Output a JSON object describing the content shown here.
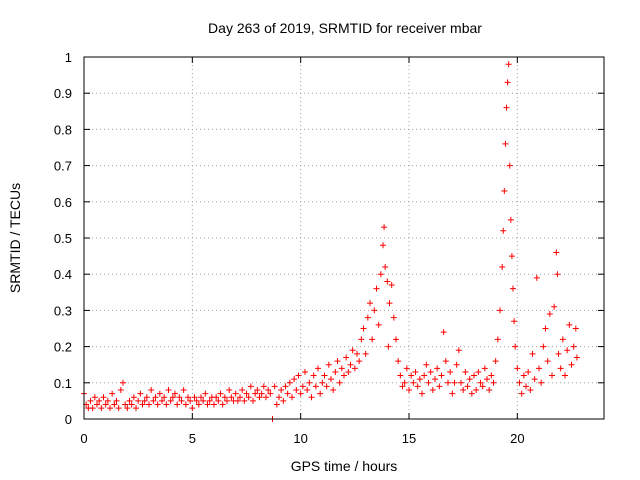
{
  "chart_data": {
    "type": "scatter",
    "title": "Day 263 of 2019, SRMTID for receiver mbar",
    "xlabel": "GPS time / hours",
    "ylabel": "SRMTID / TECUs",
    "xlim": [
      0,
      24
    ],
    "ylim": [
      0,
      1
    ],
    "x_ticks": [
      0,
      5,
      10,
      15,
      20
    ],
    "x_tick_labels": [
      "0",
      "5",
      "10",
      "15",
      "20"
    ],
    "y_ticks": [
      0,
      0.1,
      0.2,
      0.3,
      0.4,
      0.5,
      0.6,
      0.7,
      0.8,
      0.9,
      1
    ],
    "y_tick_labels": [
      "0",
      "0.1",
      "0.2",
      "0.3",
      "0.4",
      "0.5",
      "0.6",
      "0.7",
      "0.8",
      "0.9",
      "1"
    ],
    "grid": true,
    "marker": "+",
    "color": "#ff0000",
    "series": [
      {
        "name": "SRMTID",
        "points": [
          [
            0.0,
            0.07
          ],
          [
            0.1,
            0.04
          ],
          [
            0.2,
            0.03
          ],
          [
            0.3,
            0.05
          ],
          [
            0.4,
            0.03
          ],
          [
            0.5,
            0.06
          ],
          [
            0.6,
            0.04
          ],
          [
            0.7,
            0.05
          ],
          [
            0.8,
            0.03
          ],
          [
            0.9,
            0.06
          ],
          [
            1.0,
            0.04
          ],
          [
            1.1,
            0.05
          ],
          [
            1.2,
            0.03
          ],
          [
            1.3,
            0.07
          ],
          [
            1.4,
            0.04
          ],
          [
            1.5,
            0.05
          ],
          [
            1.6,
            0.03
          ],
          [
            1.7,
            0.08
          ],
          [
            1.8,
            0.1
          ],
          [
            1.9,
            0.04
          ],
          [
            2.0,
            0.03
          ],
          [
            2.1,
            0.05
          ],
          [
            2.2,
            0.04
          ],
          [
            2.3,
            0.06
          ],
          [
            2.4,
            0.03
          ],
          [
            2.5,
            0.05
          ],
          [
            2.6,
            0.07
          ],
          [
            2.7,
            0.04
          ],
          [
            2.8,
            0.05
          ],
          [
            2.9,
            0.06
          ],
          [
            3.0,
            0.04
          ],
          [
            3.1,
            0.08
          ],
          [
            3.2,
            0.05
          ],
          [
            3.3,
            0.06
          ],
          [
            3.4,
            0.04
          ],
          [
            3.5,
            0.07
          ],
          [
            3.6,
            0.05
          ],
          [
            3.7,
            0.06
          ],
          [
            3.8,
            0.04
          ],
          [
            3.9,
            0.08
          ],
          [
            4.0,
            0.05
          ],
          [
            4.1,
            0.06
          ],
          [
            4.2,
            0.07
          ],
          [
            4.3,
            0.04
          ],
          [
            4.4,
            0.06
          ],
          [
            4.5,
            0.05
          ],
          [
            4.6,
            0.08
          ],
          [
            4.7,
            0.04
          ],
          [
            4.8,
            0.06
          ],
          [
            4.9,
            0.05
          ],
          [
            5.0,
            0.03
          ],
          [
            5.1,
            0.06
          ],
          [
            5.2,
            0.05
          ],
          [
            5.3,
            0.04
          ],
          [
            5.4,
            0.06
          ],
          [
            5.5,
            0.05
          ],
          [
            5.6,
            0.07
          ],
          [
            5.7,
            0.04
          ],
          [
            5.8,
            0.05
          ],
          [
            5.9,
            0.06
          ],
          [
            6.0,
            0.04
          ],
          [
            6.1,
            0.06
          ],
          [
            6.2,
            0.05
          ],
          [
            6.3,
            0.07
          ],
          [
            6.4,
            0.04
          ],
          [
            6.5,
            0.06
          ],
          [
            6.6,
            0.05
          ],
          [
            6.7,
            0.08
          ],
          [
            6.8,
            0.06
          ],
          [
            6.9,
            0.05
          ],
          [
            7.0,
            0.07
          ],
          [
            7.1,
            0.05
          ],
          [
            7.2,
            0.06
          ],
          [
            7.3,
            0.08
          ],
          [
            7.4,
            0.05
          ],
          [
            7.5,
            0.07
          ],
          [
            7.6,
            0.06
          ],
          [
            7.7,
            0.09
          ],
          [
            7.8,
            0.05
          ],
          [
            7.9,
            0.07
          ],
          [
            8.0,
            0.08
          ],
          [
            8.1,
            0.06
          ],
          [
            8.2,
            0.07
          ],
          [
            8.3,
            0.09
          ],
          [
            8.4,
            0.06
          ],
          [
            8.5,
            0.08
          ],
          [
            8.6,
            0.07
          ],
          [
            8.7,
            0.0
          ],
          [
            8.8,
            0.09
          ],
          [
            8.9,
            0.04
          ],
          [
            9.0,
            0.06
          ],
          [
            9.1,
            0.08
          ],
          [
            9.2,
            0.05
          ],
          [
            9.3,
            0.09
          ],
          [
            9.4,
            0.07
          ],
          [
            9.5,
            0.1
          ],
          [
            9.6,
            0.06
          ],
          [
            9.7,
            0.11
          ],
          [
            9.8,
            0.08
          ],
          [
            9.9,
            0.12
          ],
          [
            10.0,
            0.07
          ],
          [
            10.1,
            0.09
          ],
          [
            10.2,
            0.13
          ],
          [
            10.3,
            0.08
          ],
          [
            10.4,
            0.1
          ],
          [
            10.5,
            0.06
          ],
          [
            10.6,
            0.12
          ],
          [
            10.7,
            0.09
          ],
          [
            10.8,
            0.14
          ],
          [
            10.9,
            0.07
          ],
          [
            11.0,
            0.1
          ],
          [
            11.1,
            0.12
          ],
          [
            11.2,
            0.09
          ],
          [
            11.3,
            0.15
          ],
          [
            11.4,
            0.11
          ],
          [
            11.5,
            0.08
          ],
          [
            11.6,
            0.13
          ],
          [
            11.7,
            0.16
          ],
          [
            11.8,
            0.1
          ],
          [
            11.9,
            0.14
          ],
          [
            12.0,
            0.12
          ],
          [
            12.1,
            0.17
          ],
          [
            12.2,
            0.13
          ],
          [
            12.3,
            0.15
          ],
          [
            12.4,
            0.19
          ],
          [
            12.5,
            0.14
          ],
          [
            12.6,
            0.18
          ],
          [
            12.7,
            0.16
          ],
          [
            12.8,
            0.22
          ],
          [
            12.9,
            0.25
          ],
          [
            13.0,
            0.18
          ],
          [
            13.1,
            0.28
          ],
          [
            13.2,
            0.32
          ],
          [
            13.3,
            0.22
          ],
          [
            13.4,
            0.3
          ],
          [
            13.5,
            0.36
          ],
          [
            13.6,
            0.26
          ],
          [
            13.7,
            0.4
          ],
          [
            13.8,
            0.48
          ],
          [
            13.85,
            0.53
          ],
          [
            13.9,
            0.42
          ],
          [
            14.0,
            0.38
          ],
          [
            14.05,
            0.2
          ],
          [
            14.1,
            0.32
          ],
          [
            14.2,
            0.37
          ],
          [
            14.3,
            0.28
          ],
          [
            14.4,
            0.22
          ],
          [
            14.5,
            0.16
          ],
          [
            14.6,
            0.12
          ],
          [
            14.7,
            0.09
          ],
          [
            14.8,
            0.1
          ],
          [
            14.9,
            0.14
          ],
          [
            15.0,
            0.08
          ],
          [
            15.1,
            0.12
          ],
          [
            15.2,
            0.1
          ],
          [
            15.3,
            0.13
          ],
          [
            15.4,
            0.09
          ],
          [
            15.5,
            0.11
          ],
          [
            15.6,
            0.07
          ],
          [
            15.7,
            0.12
          ],
          [
            15.8,
            0.15
          ],
          [
            15.9,
            0.1
          ],
          [
            16.0,
            0.13
          ],
          [
            16.1,
            0.08
          ],
          [
            16.2,
            0.11
          ],
          [
            16.3,
            0.14
          ],
          [
            16.4,
            0.09
          ],
          [
            16.5,
            0.12
          ],
          [
            16.6,
            0.24
          ],
          [
            16.7,
            0.16
          ],
          [
            16.8,
            0.1
          ],
          [
            16.9,
            0.13
          ],
          [
            17.0,
            0.07
          ],
          [
            17.1,
            0.1
          ],
          [
            17.2,
            0.15
          ],
          [
            17.3,
            0.19
          ],
          [
            17.4,
            0.1
          ],
          [
            17.5,
            0.08
          ],
          [
            17.6,
            0.13
          ],
          [
            17.7,
            0.09
          ],
          [
            17.8,
            0.11
          ],
          [
            17.9,
            0.07
          ],
          [
            18.0,
            0.12
          ],
          [
            18.1,
            0.08
          ],
          [
            18.2,
            0.13
          ],
          [
            18.3,
            0.1
          ],
          [
            18.4,
            0.09
          ],
          [
            18.5,
            0.14
          ],
          [
            18.6,
            0.11
          ],
          [
            18.7,
            0.08
          ],
          [
            18.8,
            0.12
          ],
          [
            18.9,
            0.1
          ],
          [
            19.0,
            0.16
          ],
          [
            19.1,
            0.22
          ],
          [
            19.2,
            0.3
          ],
          [
            19.3,
            0.42
          ],
          [
            19.35,
            0.52
          ],
          [
            19.4,
            0.63
          ],
          [
            19.45,
            0.76
          ],
          [
            19.5,
            0.86
          ],
          [
            19.55,
            0.93
          ],
          [
            19.6,
            0.98
          ],
          [
            19.65,
            0.7
          ],
          [
            19.7,
            0.55
          ],
          [
            19.75,
            0.45
          ],
          [
            19.8,
            0.36
          ],
          [
            19.85,
            0.27
          ],
          [
            19.9,
            0.2
          ],
          [
            20.0,
            0.14
          ],
          [
            20.1,
            0.1
          ],
          [
            20.2,
            0.07
          ],
          [
            20.3,
            0.12
          ],
          [
            20.4,
            0.09
          ],
          [
            20.5,
            0.13
          ],
          [
            20.6,
            0.08
          ],
          [
            20.7,
            0.18
          ],
          [
            20.8,
            0.11
          ],
          [
            20.9,
            0.39
          ],
          [
            21.0,
            0.14
          ],
          [
            21.1,
            0.1
          ],
          [
            21.2,
            0.2
          ],
          [
            21.3,
            0.25
          ],
          [
            21.4,
            0.16
          ],
          [
            21.5,
            0.29
          ],
          [
            21.6,
            0.12
          ],
          [
            21.7,
            0.31
          ],
          [
            21.8,
            0.46
          ],
          [
            21.85,
            0.4
          ],
          [
            21.9,
            0.18
          ],
          [
            22.0,
            0.14
          ],
          [
            22.1,
            0.22
          ],
          [
            22.2,
            0.12
          ],
          [
            22.3,
            0.19
          ],
          [
            22.4,
            0.26
          ],
          [
            22.5,
            0.15
          ],
          [
            22.6,
            0.2
          ],
          [
            22.7,
            0.25
          ],
          [
            22.75,
            0.17
          ]
        ]
      }
    ]
  }
}
